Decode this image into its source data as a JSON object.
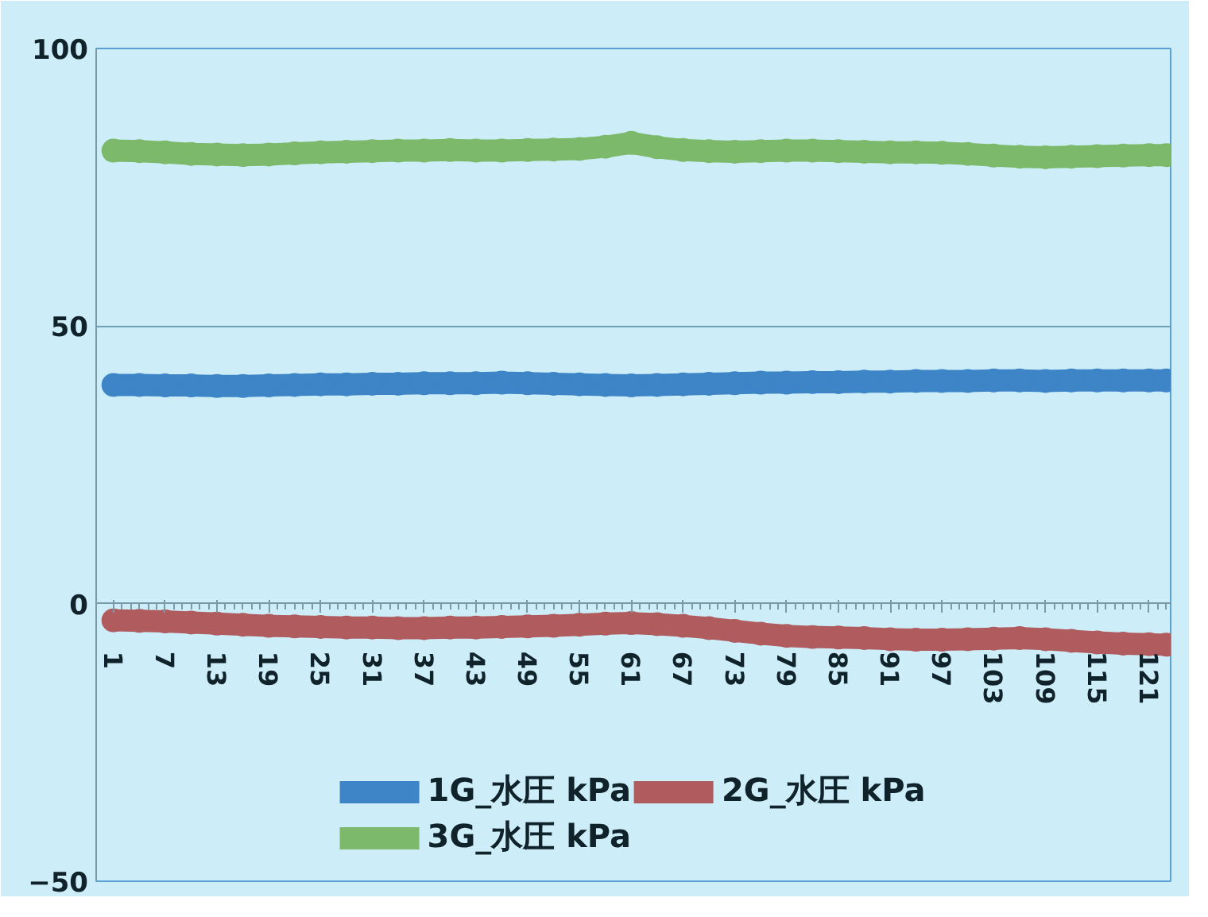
{
  "chart_data": {
    "type": "line",
    "marker": "circle",
    "line_style": "solid",
    "grid": "y",
    "legend": "bottom",
    "x": [
      1,
      4,
      7,
      10,
      13,
      16,
      19,
      22,
      25,
      28,
      31,
      34,
      37,
      40,
      43,
      46,
      49,
      52,
      55,
      58,
      61,
      64,
      67,
      70,
      73,
      76,
      79,
      82,
      85,
      88,
      91,
      94,
      97,
      100,
      103,
      106,
      109,
      112,
      115,
      118,
      121,
      123
    ],
    "xlim": [
      -1,
      123.5
    ],
    "xticks": [
      1,
      7,
      13,
      19,
      25,
      31,
      37,
      43,
      49,
      55,
      61,
      67,
      73,
      79,
      85,
      91,
      97,
      103,
      109,
      115,
      121
    ],
    "ylim": [
      -50,
      100
    ],
    "yticks": [
      -50,
      0,
      50,
      100
    ],
    "series": [
      {
        "name": "1G_水圧 kPa",
        "color": "#3d85c6",
        "values": [
          39.4,
          39.4,
          39.3,
          39.3,
          39.2,
          39.2,
          39.3,
          39.4,
          39.5,
          39.5,
          39.6,
          39.6,
          39.7,
          39.7,
          39.7,
          39.8,
          39.7,
          39.6,
          39.5,
          39.4,
          39.3,
          39.4,
          39.5,
          39.6,
          39.7,
          39.8,
          39.8,
          39.9,
          39.9,
          40.0,
          40.0,
          40.1,
          40.1,
          40.1,
          40.2,
          40.2,
          40.1,
          40.2,
          40.2,
          40.2,
          40.2,
          40.2
        ]
      },
      {
        "name": "2G_水圧 kPa",
        "color": "#b05c5e",
        "values": [
          -3.0,
          -3.1,
          -3.2,
          -3.4,
          -3.6,
          -3.8,
          -4.0,
          -4.1,
          -4.2,
          -4.3,
          -4.3,
          -4.4,
          -4.4,
          -4.3,
          -4.3,
          -4.2,
          -4.1,
          -4.0,
          -3.8,
          -3.6,
          -3.5,
          -3.7,
          -4.0,
          -4.4,
          -4.9,
          -5.4,
          -5.8,
          -6.0,
          -6.1,
          -6.2,
          -6.4,
          -6.5,
          -6.5,
          -6.4,
          -6.3,
          -6.2,
          -6.4,
          -6.7,
          -7.0,
          -7.2,
          -7.3,
          -7.4
        ]
      },
      {
        "name": "3G_水圧 kPa",
        "color": "#7cb96a",
        "values": [
          81.6,
          81.5,
          81.3,
          81.0,
          80.9,
          80.8,
          80.9,
          81.1,
          81.3,
          81.4,
          81.5,
          81.6,
          81.6,
          81.7,
          81.6,
          81.6,
          81.7,
          81.8,
          81.9,
          82.3,
          83.0,
          82.2,
          81.7,
          81.5,
          81.4,
          81.5,
          81.6,
          81.6,
          81.5,
          81.4,
          81.3,
          81.3,
          81.2,
          81.0,
          80.7,
          80.5,
          80.4,
          80.5,
          80.6,
          80.7,
          80.8,
          80.8
        ]
      }
    ]
  }
}
